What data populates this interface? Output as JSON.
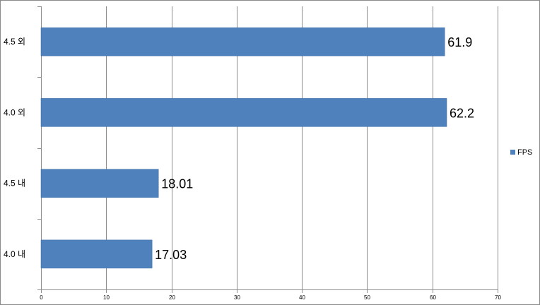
{
  "chart_data": {
    "type": "bar",
    "orientation": "horizontal",
    "categories": [
      "4.0 내",
      "4.5 내",
      "4.0 외",
      "4.5 외"
    ],
    "series": [
      {
        "name": "FPS",
        "color": "#4F81BD",
        "values": [
          17.03,
          18.01,
          62.2,
          61.9
        ],
        "labels": [
          "17.03",
          "18.01",
          "62.2",
          "61.9"
        ]
      }
    ],
    "xlim": [
      0,
      70
    ],
    "xticks": [
      0,
      10,
      20,
      30,
      40,
      50,
      60,
      70
    ],
    "xtick_labels": [
      "0",
      "10",
      "20",
      "30",
      "40",
      "50",
      "60",
      "70"
    ],
    "grid": "vertical",
    "legend": "right",
    "title": "",
    "xlabel": "",
    "ylabel": ""
  }
}
